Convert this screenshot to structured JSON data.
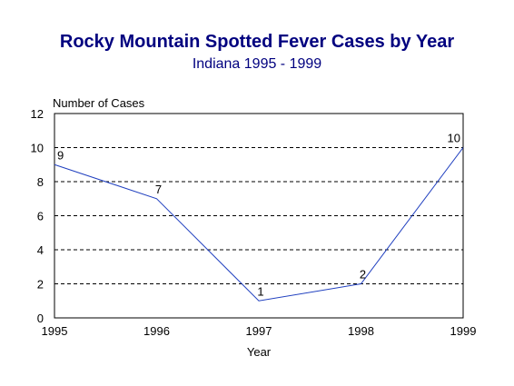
{
  "chart_data": {
    "type": "line",
    "title": "Rocky Mountain Spotted Fever Cases by Year",
    "subtitle": "Indiana 1995 - 1999",
    "xlabel": "Year",
    "ylabel": "Number of Cases",
    "x": [
      1995,
      1996,
      1997,
      1998,
      1999
    ],
    "series": [
      {
        "values": [
          9,
          7,
          1,
          2,
          10
        ]
      }
    ],
    "ylim": [
      0,
      12
    ],
    "yticks": [
      0,
      2,
      4,
      6,
      8,
      10,
      12
    ],
    "grid": "horizontal dashed",
    "legend": "none",
    "colors": {
      "title": "#00007f",
      "line": "#1f3fbf"
    }
  }
}
